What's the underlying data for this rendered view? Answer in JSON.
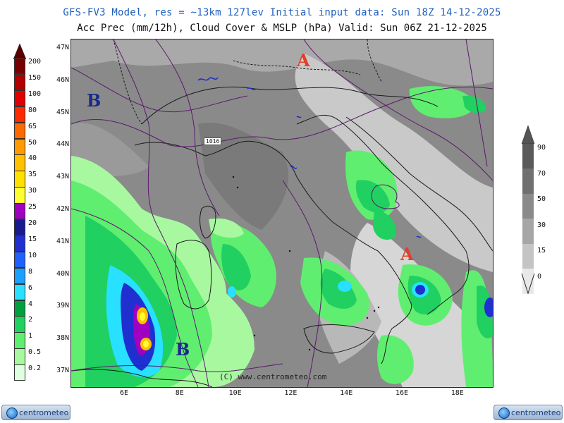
{
  "header": {
    "line1": "GFS-FV3 Model, res = ~13km 127lev   Initial input data: Sun 18Z 14-12-2025",
    "line2": "Acc Prec (mm/12h), Cloud Cover & MSLP (hPa)  Valid: Sun 06Z 21-12-2025"
  },
  "axes": {
    "lat_labels": [
      "47N",
      "46N",
      "45N",
      "44N",
      "43N",
      "42N",
      "41N",
      "40N",
      "39N",
      "38N",
      "37N"
    ],
    "lon_labels": [
      "6E",
      "8E",
      "10E",
      "12E",
      "14E",
      "16E",
      "18E"
    ]
  },
  "precip_legend": {
    "labels": [
      "200",
      "150",
      "100",
      "80",
      "65",
      "50",
      "40",
      "35",
      "30",
      "25",
      "20",
      "15",
      "10",
      "8",
      "6",
      "4",
      "2",
      "1",
      "0.5",
      "0.2"
    ],
    "colors": [
      "#7a0000",
      "#b00000",
      "#e00000",
      "#ff2a00",
      "#ff6a00",
      "#ff9a00",
      "#ffc000",
      "#ffe000",
      "#ffff30",
      "#a000c0",
      "#1a1a90",
      "#1f2fd0",
      "#2060ff",
      "#1aa0ff",
      "#28e0ff",
      "#00a040",
      "#20d060",
      "#60ee70",
      "#a8f8a0",
      "#e0ffe0"
    ]
  },
  "cloud_legend": {
    "labels": [
      "90",
      "70",
      "50",
      "30",
      "15",
      "0"
    ],
    "colors": [
      "#5a5a5a",
      "#707070",
      "#8a8a8a",
      "#a6a6a6",
      "#c4c4c4",
      "#e8e8e8"
    ]
  },
  "pressure_centers": [
    {
      "label": "A",
      "color": "#e0402a"
    },
    {
      "label": "B",
      "color": "#1a2a8a"
    },
    {
      "label": "A",
      "color": "#e0402a"
    },
    {
      "label": "B",
      "color": "#1a2a8a"
    }
  ],
  "isobar_label": "1016",
  "copyright": "(C) www.centrometeo.com",
  "logos": {
    "left": "centrometeo",
    "right": "centrometeo"
  }
}
